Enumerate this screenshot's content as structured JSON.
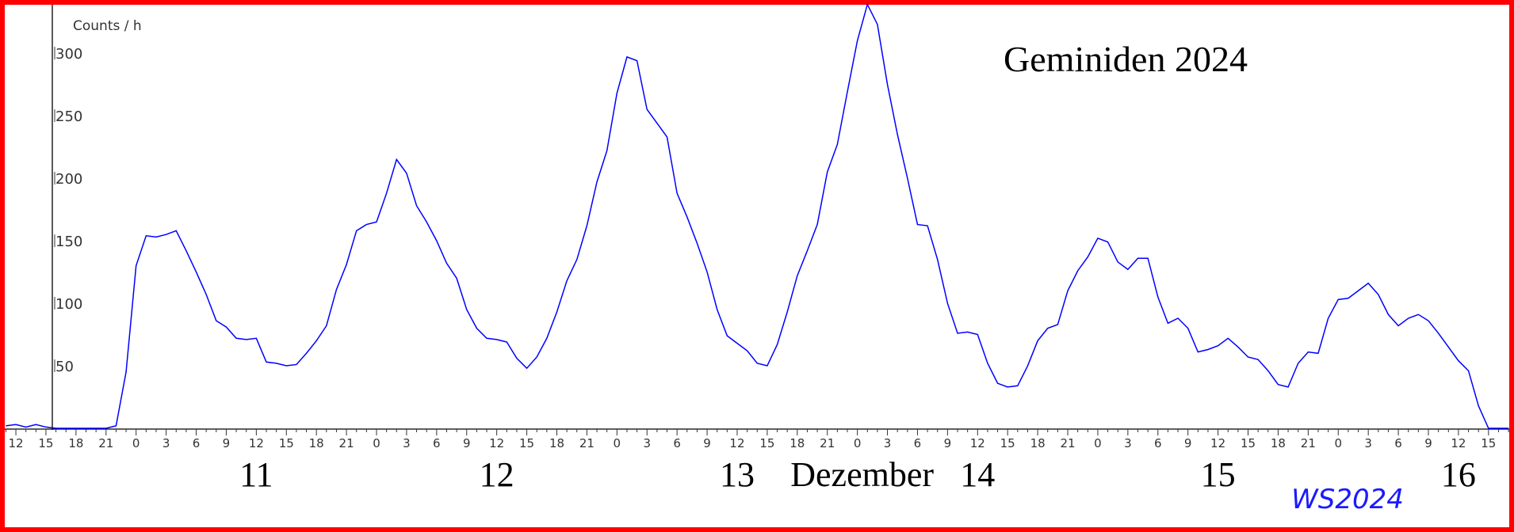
{
  "chart_data": {
    "type": "line",
    "title": "Geminiden 2024",
    "y_label": "Counts / h",
    "watermark": "WS2024",
    "month_label": "Dezember",
    "days": [
      "11",
      "12",
      "13",
      "14",
      "15",
      "16"
    ],
    "categories": [
      null,
      "12",
      null,
      null,
      "15",
      null,
      null,
      "18",
      null,
      null,
      "21",
      null,
      null,
      "0",
      null,
      null,
      "3",
      null,
      null,
      "6",
      null,
      null,
      "9",
      null,
      null,
      "12",
      null,
      null,
      "15",
      null,
      null,
      "18",
      null,
      null,
      "21",
      null,
      null,
      "0",
      null,
      null,
      "3",
      null,
      null,
      "6",
      null,
      null,
      "9",
      null,
      null,
      "12",
      null,
      null,
      "15",
      null,
      null,
      "18",
      null,
      null,
      "21",
      null,
      null,
      "0",
      null,
      null,
      "3",
      null,
      null,
      "6",
      null,
      null,
      "9",
      null,
      null,
      "12",
      null,
      null,
      "15",
      null,
      null,
      "18",
      null,
      null,
      "21",
      null,
      null,
      "0",
      null,
      null,
      "3",
      null,
      null,
      "6",
      null,
      null,
      "9",
      null,
      null,
      "12",
      null,
      null,
      "15",
      null,
      null,
      "18",
      null,
      null,
      "21",
      null,
      null,
      "0",
      null,
      null,
      "3",
      null,
      null,
      "6",
      null,
      null,
      "9",
      null,
      null,
      "12",
      null,
      null,
      "15",
      null,
      null,
      "18",
      null,
      null,
      "21",
      null,
      null,
      "0",
      null,
      null,
      "3",
      null,
      null,
      "6",
      null,
      null,
      "9",
      null,
      null,
      "12",
      null,
      null,
      "15",
      null,
      null
    ],
    "values": [
      2,
      3,
      1,
      3,
      1,
      0,
      0,
      0,
      0,
      0,
      0,
      2,
      45,
      130,
      154,
      153,
      155,
      158,
      142,
      125,
      107,
      86,
      81,
      72,
      71,
      72,
      53,
      52,
      50,
      51,
      60,
      70,
      82,
      111,
      131,
      158,
      163,
      165,
      188,
      215,
      204,
      178,
      165,
      150,
      132,
      120,
      95,
      80,
      72,
      71,
      69,
      56,
      48,
      57,
      72,
      93,
      118,
      135,
      162,
      197,
      222,
      268,
      297,
      294,
      255,
      244,
      233,
      188,
      169,
      148,
      125,
      95,
      74,
      68,
      62,
      52,
      50,
      67,
      93,
      122,
      142,
      163,
      205,
      227,
      269,
      310,
      339,
      323,
      275,
      235,
      200,
      163,
      162,
      135,
      100,
      76,
      77,
      75,
      52,
      36,
      33,
      34,
      50,
      70,
      80,
      83,
      110,
      126,
      137,
      152,
      149,
      133,
      127,
      136,
      136,
      105,
      84,
      88,
      80,
      61,
      63,
      66,
      72,
      65,
      57,
      55,
      46,
      35,
      33,
      52,
      61,
      60,
      88,
      103,
      104,
      110,
      116,
      107,
      91,
      82,
      88,
      91,
      86,
      76,
      65,
      54,
      46,
      18,
      0,
      0,
      0
    ],
    "color": "#0000ff",
    "ylim": [
      0,
      340
    ],
    "yticks": [
      50,
      100,
      150,
      200,
      250,
      300
    ]
  }
}
